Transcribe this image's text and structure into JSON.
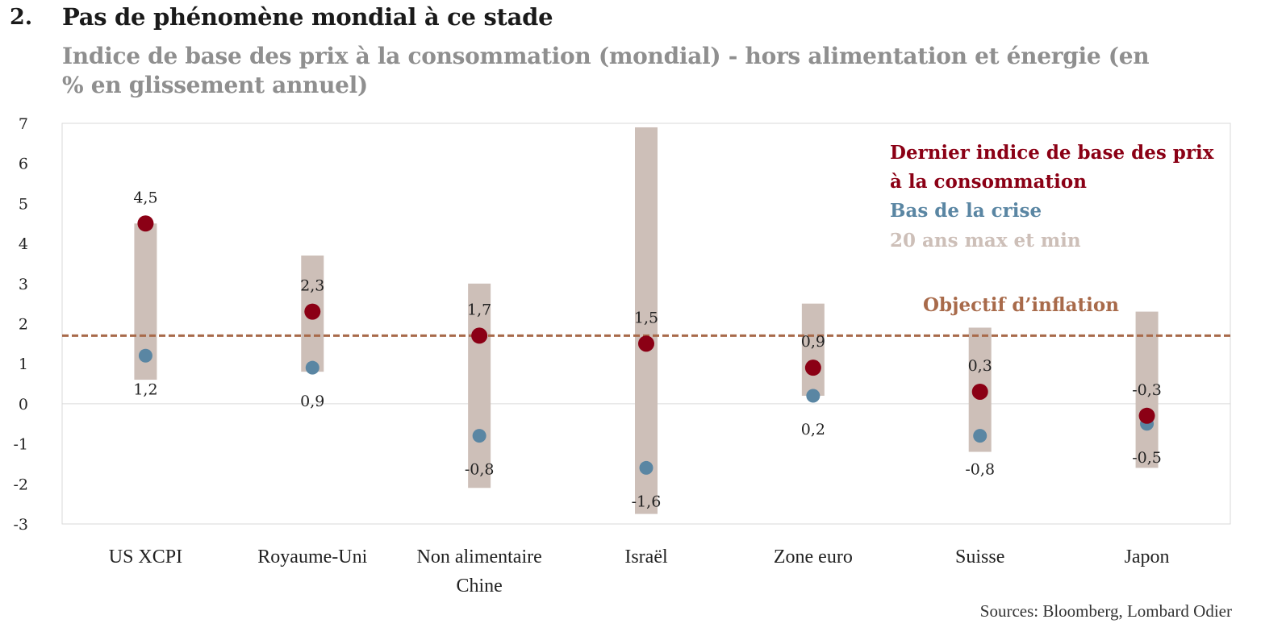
{
  "header": {
    "number": "2.",
    "title": "Pas de phénomène mondial à ce stade",
    "subtitle": "Indice de base des prix à la consommation (mondial) - hors alimentation et énergie (en % en glissement annuel)"
  },
  "source": "Sources: Bloomberg, Lombard Odier",
  "colors": {
    "current": "#8b0015",
    "trough": "#5a86a3",
    "range": "#cdbfb8",
    "target": "#a86a4a",
    "legend_range": "#cdbfb8"
  },
  "chart_data": {
    "type": "scatter",
    "ylim": [
      -3,
      7
    ],
    "yticks": [
      "-3",
      "-2",
      "-1",
      "0",
      "1",
      "2",
      "3",
      "4",
      "5",
      "6",
      "7"
    ],
    "categories": [
      [
        "US XCPI"
      ],
      [
        "Royaume-Uni"
      ],
      [
        "Non alimentaire",
        "Chine"
      ],
      [
        "Israël"
      ],
      [
        "Zone euro"
      ],
      [
        "Suisse"
      ],
      [
        "Japon"
      ]
    ],
    "series": [
      {
        "name": "Dernier indice de base des prix à la consommation",
        "values": [
          4.5,
          2.3,
          1.7,
          1.5,
          0.9,
          0.3,
          -0.3
        ],
        "labels": [
          "4,5",
          "2,3",
          "1,7",
          "1,5",
          "0,9",
          "0,3",
          "-0,3"
        ]
      },
      {
        "name": "Bas de la crise",
        "values": [
          1.2,
          0.9,
          -0.8,
          -1.6,
          0.2,
          -0.8,
          -0.5
        ],
        "labels": [
          "1,2",
          "0,9",
          "-0,8",
          "-1,6",
          "0,2",
          "-0,8",
          "-0,5"
        ]
      },
      {
        "name": "20 ans max et min",
        "max": [
          4.5,
          3.7,
          3.0,
          6.9,
          2.5,
          1.9,
          2.3
        ],
        "min": [
          0.6,
          0.8,
          -2.1,
          -2.75,
          0.2,
          -1.2,
          -1.6
        ]
      }
    ],
    "target": {
      "label": "Objectif d’inflation",
      "value": 1.7
    },
    "legend": {
      "position": "top-right",
      "current_lines": [
        "Dernier indice de base des prix",
        "à la consommation"
      ],
      "trough": "Bas de la crise",
      "range": "20 ans max et min"
    },
    "grid": false
  }
}
